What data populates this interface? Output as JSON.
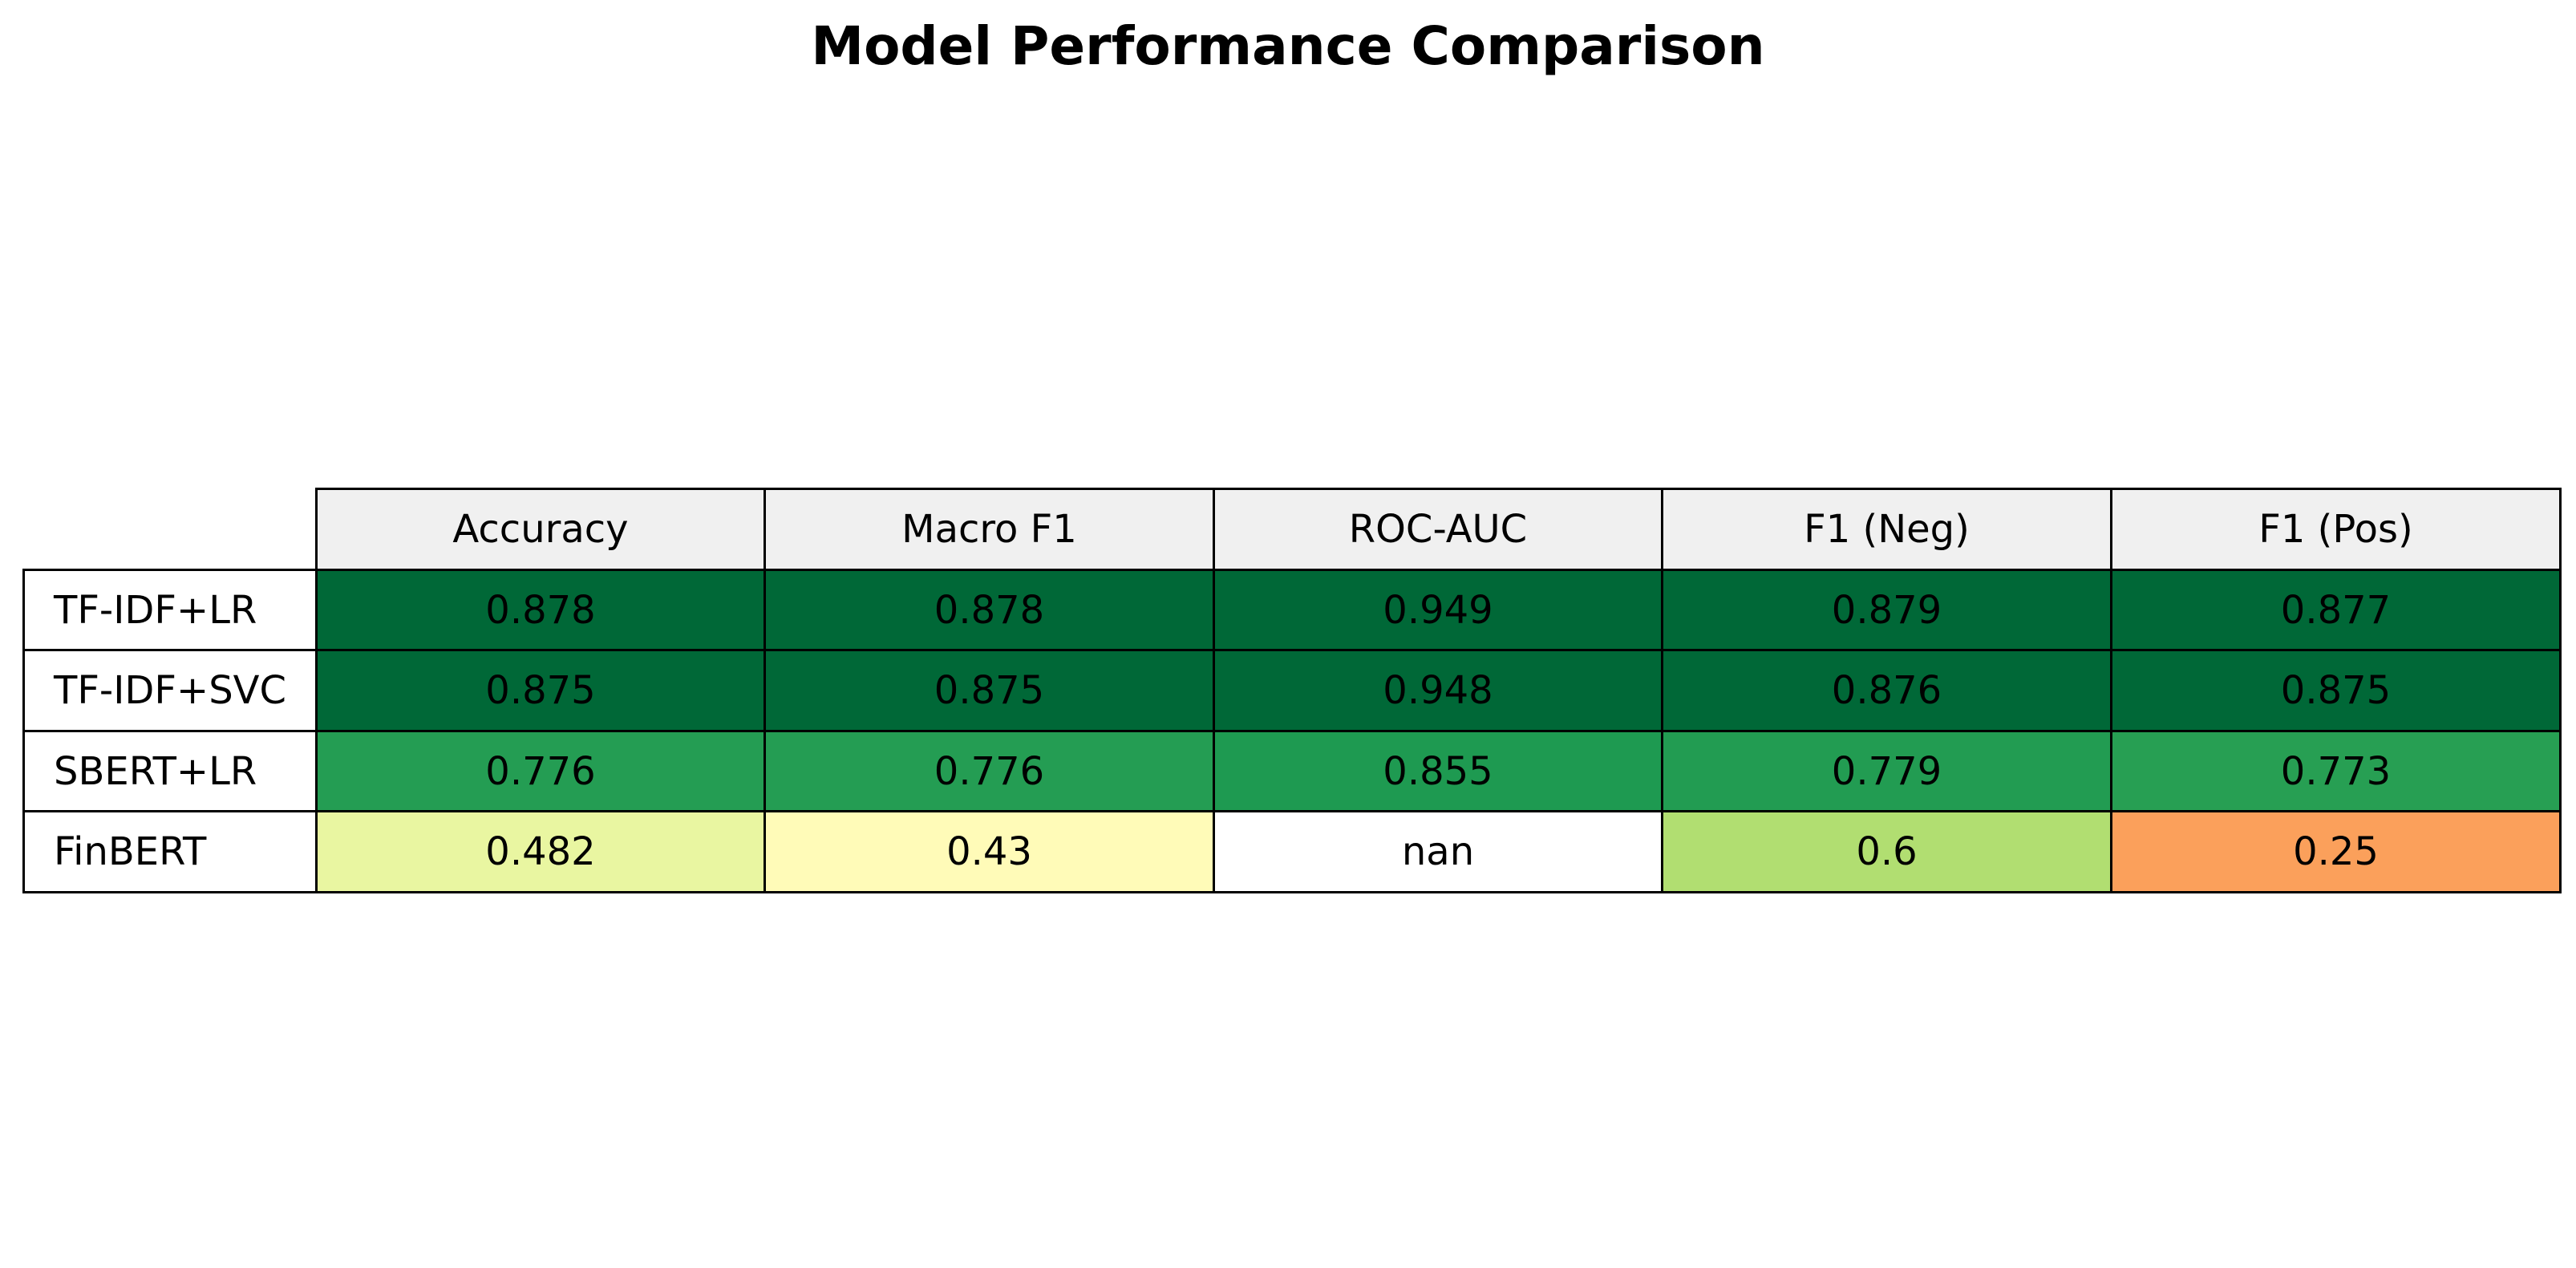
{
  "chart_data": {
    "type": "table",
    "title": "Model Performance Comparison",
    "columns": [
      "Accuracy",
      "Macro F1",
      "ROC-AUC",
      "F1 (Neg)",
      "F1 (Pos)"
    ],
    "rows": [
      {
        "label": "TF-IDF+LR",
        "values": [
          "0.878",
          "0.878",
          "0.949",
          "0.879",
          "0.877"
        ],
        "colors": [
          "#006837",
          "#006837",
          "#006837",
          "#006837",
          "#006837"
        ]
      },
      {
        "label": "TF-IDF+SVC",
        "values": [
          "0.875",
          "0.875",
          "0.948",
          "0.876",
          "0.875"
        ],
        "colors": [
          "#006837",
          "#006837",
          "#006837",
          "#006837",
          "#006837"
        ]
      },
      {
        "label": "SBERT+LR",
        "values": [
          "0.776",
          "0.776",
          "0.855",
          "0.779",
          "0.773"
        ],
        "colors": [
          "#249d53",
          "#249d53",
          "#1e9a51",
          "#229c52",
          "#279f53"
        ]
      },
      {
        "label": "FinBERT",
        "values": [
          "0.482",
          "0.43",
          "nan",
          "0.6",
          "0.25"
        ],
        "colors": [
          "#e9f6a1",
          "#fffbb8",
          "#ffffff",
          "#b1de71",
          "#fba05b"
        ]
      }
    ],
    "colormap": "RdYlGn"
  }
}
